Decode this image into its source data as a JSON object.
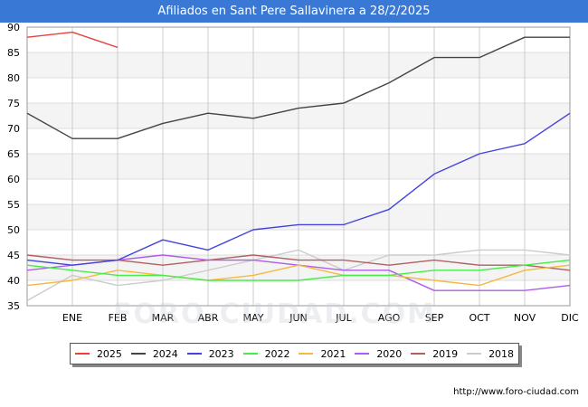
{
  "source_text": "http://www.foro-ciudad.com",
  "watermark_text": "FORO-CIUDAD.COM",
  "chart_data": {
    "type": "line",
    "title": "Afiliados en Sant Pere Sallavinera a 28/2/2025",
    "xlabel": "",
    "ylabel": "",
    "categories": [
      "",
      "ENE",
      "FEB",
      "MAR",
      "ABR",
      "MAY",
      "JUN",
      "JUL",
      "AGO",
      "SEP",
      "OCT",
      "NOV",
      "DIC"
    ],
    "ylim": [
      35,
      90
    ],
    "yticks": [
      35,
      40,
      45,
      50,
      55,
      60,
      65,
      70,
      75,
      80,
      85,
      90
    ],
    "grid": true,
    "legend_position": "bottom",
    "series": [
      {
        "name": "2025",
        "color": "#e8413c",
        "values": [
          88,
          89,
          86,
          null,
          null,
          null,
          null,
          null,
          null,
          null,
          null,
          null,
          null
        ]
      },
      {
        "name": "2024",
        "color": "#444444",
        "values": [
          73,
          68,
          68,
          71,
          73,
          72,
          74,
          75,
          79,
          84,
          84,
          88,
          88
        ]
      },
      {
        "name": "2023",
        "color": "#4444dd",
        "values": [
          44,
          43,
          44,
          48,
          46,
          50,
          51,
          51,
          54,
          61,
          65,
          67,
          73
        ]
      },
      {
        "name": "2022",
        "color": "#44ee44",
        "values": [
          43,
          42,
          41,
          41,
          40,
          40,
          40,
          41,
          41,
          42,
          42,
          43,
          44
        ]
      },
      {
        "name": "2021",
        "color": "#f5b942",
        "values": [
          39,
          40,
          42,
          41,
          40,
          41,
          43,
          41,
          41,
          40,
          39,
          42,
          43
        ]
      },
      {
        "name": "2020",
        "color": "#b05ce6",
        "values": [
          42,
          43,
          44,
          45,
          44,
          44,
          43,
          42,
          42,
          38,
          38,
          38,
          39
        ]
      },
      {
        "name": "2019",
        "color": "#b06060",
        "values": [
          45,
          44,
          44,
          43,
          44,
          45,
          44,
          44,
          43,
          44,
          43,
          43,
          42
        ]
      },
      {
        "name": "2018",
        "color": "#cccccc",
        "values": [
          36,
          41,
          39,
          40,
          42,
          44,
          46,
          42,
          45,
          45,
          46,
          46,
          45
        ]
      }
    ]
  }
}
